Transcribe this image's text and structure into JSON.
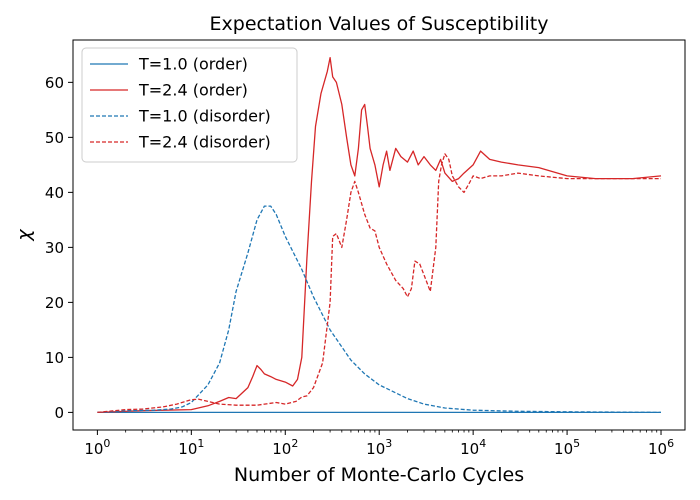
{
  "chart_data": {
    "type": "line",
    "title": "Expectation Values of Susceptibility",
    "xlabel": "Number of Monte-Carlo Cycles",
    "ylabel": "χ",
    "xscale": "log",
    "xlim": [
      0.55,
      1800000
    ],
    "ylim": [
      -3.2,
      67.7
    ],
    "x_ticks": [
      {
        "value": 1,
        "base": "10",
        "exp": "0"
      },
      {
        "value": 10,
        "base": "10",
        "exp": "1"
      },
      {
        "value": 100,
        "base": "10",
        "exp": "2"
      },
      {
        "value": 1000,
        "base": "10",
        "exp": "3"
      },
      {
        "value": 10000,
        "base": "10",
        "exp": "4"
      },
      {
        "value": 100000,
        "base": "10",
        "exp": "5"
      },
      {
        "value": 1000000,
        "base": "10",
        "exp": "6"
      }
    ],
    "y_ticks": [
      0,
      10,
      20,
      30,
      40,
      50,
      60
    ],
    "grid": false,
    "legend_position": "top-left",
    "series": [
      {
        "name": "T=1.0 (order)",
        "color": "#1f77b4",
        "dash": "solid",
        "x": [
          1,
          10,
          100,
          1000,
          10000,
          100000,
          1000000
        ],
        "y": [
          0,
          0,
          0,
          0,
          0,
          0,
          0
        ]
      },
      {
        "name": "T=2.4 (order)",
        "color": "#d62728",
        "dash": "solid",
        "x": [
          1,
          3,
          10,
          15,
          20,
          25,
          30,
          40,
          45,
          50,
          55,
          60,
          70,
          80,
          100,
          120,
          135,
          150,
          170,
          190,
          210,
          240,
          280,
          300,
          320,
          350,
          400,
          450,
          500,
          550,
          600,
          650,
          700,
          750,
          800,
          900,
          1000,
          1100,
          1200,
          1300,
          1500,
          1700,
          2000,
          2300,
          2600,
          3000,
          3500,
          4000,
          4500,
          5000,
          6000,
          7000,
          8000,
          10000,
          12000,
          15000,
          20000,
          30000,
          50000,
          100000,
          200000,
          500000,
          1000000
        ],
        "y": [
          0,
          0.3,
          0.5,
          1.2,
          2.0,
          2.7,
          2.5,
          4.5,
          6.5,
          8.5,
          7.8,
          7.0,
          6.5,
          6.0,
          5.5,
          4.8,
          6.0,
          10.0,
          28.0,
          42.0,
          52.0,
          58.0,
          62.0,
          64.5,
          61.0,
          60.0,
          56.0,
          50.0,
          45.0,
          43.0,
          48.0,
          55.0,
          56.0,
          52.0,
          48.0,
          45.0,
          41.0,
          45.0,
          47.5,
          44.0,
          48.0,
          46.5,
          45.5,
          47.5,
          45.0,
          46.5,
          45.0,
          44.0,
          46.0,
          43.5,
          42.0,
          42.5,
          43.5,
          45.0,
          47.5,
          46.0,
          45.5,
          45.0,
          44.5,
          43.0,
          42.5,
          42.5,
          43.0
        ]
      },
      {
        "name": "T=1.0 (disorder)",
        "color": "#1f77b4",
        "dash": "dashed",
        "x": [
          1,
          2,
          4,
          6,
          8,
          10,
          15,
          20,
          25,
          30,
          40,
          50,
          60,
          70,
          80,
          100,
          150,
          200,
          300,
          500,
          700,
          1000,
          2000,
          3000,
          5000,
          10000,
          30000,
          100000,
          1000000
        ],
        "y": [
          0,
          0.3,
          0.4,
          0.6,
          1.0,
          1.8,
          5.0,
          9.0,
          15.0,
          22.0,
          29.0,
          35.0,
          37.5,
          37.5,
          36.0,
          32.0,
          26.0,
          21.0,
          15.0,
          9.5,
          7.0,
          5.0,
          2.5,
          1.5,
          0.8,
          0.4,
          0.2,
          0.1,
          0
        ]
      },
      {
        "name": "T=2.4 (disorder)",
        "color": "#d62728",
        "dash": "dashed",
        "x": [
          1,
          2,
          3,
          5,
          7,
          10,
          12,
          15,
          20,
          30,
          50,
          80,
          100,
          130,
          150,
          170,
          200,
          250,
          300,
          320,
          350,
          400,
          450,
          500,
          550,
          600,
          700,
          800,
          900,
          1000,
          1200,
          1500,
          1800,
          2000,
          2200,
          2400,
          2700,
          3000,
          3500,
          4000,
          4300,
          4600,
          5000,
          5500,
          6000,
          7000,
          8000,
          9000,
          10000,
          12000,
          15000,
          20000,
          30000,
          50000,
          100000,
          200000,
          500000,
          1000000
        ],
        "y": [
          0,
          0.5,
          0.6,
          1.0,
          1.5,
          2.3,
          2.4,
          2.0,
          1.5,
          1.3,
          1.3,
          1.8,
          1.5,
          2.0,
          2.8,
          3.0,
          4.5,
          9.0,
          20.0,
          32.0,
          32.5,
          30.0,
          35.0,
          40.0,
          42.0,
          40.0,
          36.0,
          33.5,
          33.0,
          30.0,
          27.0,
          24.0,
          22.5,
          21.0,
          22.5,
          27.5,
          27.0,
          25.0,
          22.0,
          30.0,
          42.0,
          45.0,
          47.0,
          46.0,
          43.0,
          41.0,
          40.0,
          41.5,
          43.0,
          42.5,
          43.0,
          43.0,
          43.5,
          43.0,
          42.5,
          42.5,
          42.5,
          42.5
        ]
      }
    ]
  }
}
